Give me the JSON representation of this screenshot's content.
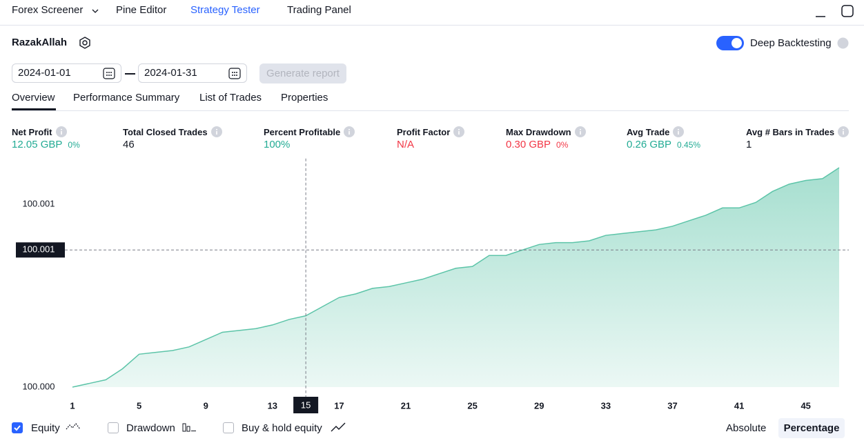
{
  "nav": {
    "items": [
      "Forex Screener",
      "Pine Editor",
      "Strategy Tester",
      "Trading Panel"
    ]
  },
  "strategy": {
    "name": "RazakAllah",
    "deep_backtesting": {
      "label": "Deep Backtesting",
      "enabled": true
    }
  },
  "date_range": {
    "from": "2024-01-01",
    "to": "2024-01-31",
    "button": "Generate report"
  },
  "tabs": [
    "Overview",
    "Performance Summary",
    "List of Trades",
    "Properties"
  ],
  "metrics": [
    {
      "label": "Net Profit",
      "value": "12.05 GBP",
      "sub": "0%",
      "color": "#22ab94"
    },
    {
      "label": "Total Closed Trades",
      "value": "46",
      "color": "#131722"
    },
    {
      "label": "Percent Profitable",
      "value": "100%",
      "color": "#22ab94"
    },
    {
      "label": "Profit Factor",
      "value": "N/A",
      "color": "#f23645"
    },
    {
      "label": "Max Drawdown",
      "value": "0.30 GBP",
      "sub": "0%",
      "color": "#f23645"
    },
    {
      "label": "Avg Trade",
      "value": "0.26 GBP",
      "sub": "0.45%",
      "color": "#22ab94"
    },
    {
      "label": "Avg # Bars in Trades",
      "value": "1",
      "color": "#131722"
    }
  ],
  "chart_data": {
    "type": "area",
    "x": [
      1,
      2,
      3,
      4,
      5,
      6,
      7,
      8,
      9,
      10,
      11,
      12,
      13,
      14,
      15,
      16,
      17,
      18,
      19,
      20,
      21,
      22,
      23,
      24,
      25,
      26,
      27,
      28,
      29,
      30,
      31,
      32,
      33,
      34,
      35,
      36,
      37,
      38,
      39,
      40,
      41,
      42,
      43,
      44,
      45,
      46,
      47
    ],
    "series": [
      {
        "name": "Equity",
        "color": "#5cc4a8",
        "values": [
          100.0,
          100.00002,
          100.00004,
          100.0001,
          100.00018,
          100.00019,
          100.0002,
          100.00022,
          100.00026,
          100.0003,
          100.00031,
          100.00032,
          100.00034,
          100.00037,
          100.00039,
          100.00044,
          100.00049,
          100.00051,
          100.00054,
          100.00055,
          100.00057,
          100.00059,
          100.00062,
          100.00065,
          100.00066,
          100.00072,
          100.00072,
          100.00075,
          100.00078,
          100.00079,
          100.00079,
          100.0008,
          100.00083,
          100.00084,
          100.00085,
          100.00086,
          100.00088,
          100.00091,
          100.00094,
          100.00098,
          100.00098,
          100.00101,
          100.00107,
          100.00111,
          100.00113,
          100.00114,
          100.0012
        ]
      }
    ],
    "xlim": [
      1,
      47
    ],
    "xticks": [
      1,
      5,
      9,
      13,
      17,
      21,
      25,
      29,
      33,
      37,
      41,
      45
    ],
    "ylim": [
      100.0,
      100.00125
    ],
    "yticks": [
      {
        "value": 100.0,
        "label": "100.000"
      },
      100.001
    ],
    "crosshair": {
      "x": 15,
      "y": {
        "value": 100.00075,
        "label": "100.001"
      }
    }
  },
  "footer": {
    "toggles": [
      {
        "label": "Equity",
        "checked": true
      },
      {
        "label": "Drawdown",
        "checked": false
      },
      {
        "label": "Buy & hold equity",
        "checked": false
      }
    ],
    "modes": [
      "Absolute",
      "Percentage"
    ]
  }
}
